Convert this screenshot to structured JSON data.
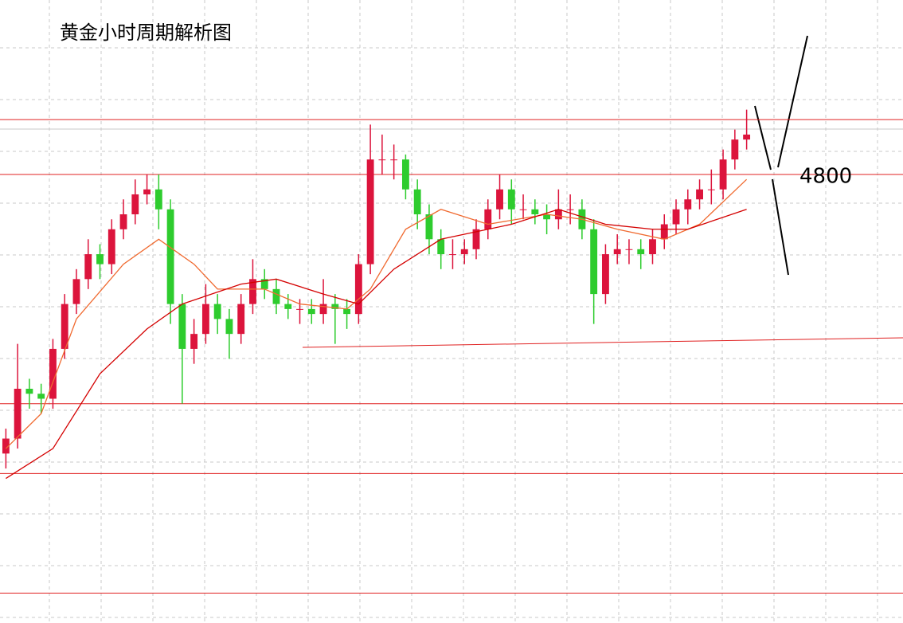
{
  "chart_data": {
    "type": "candlestick",
    "title": "黄金小时周期解析图",
    "ylim": [
      4710,
      4835
    ],
    "up_color": "#dc143c",
    "down_color": "#2ecc2e",
    "level_color": "#e02020",
    "candles": [
      {
        "o": 4744,
        "h": 4749,
        "l": 4741,
        "c": 4747
      },
      {
        "o": 4747,
        "h": 4766,
        "l": 4745,
        "c": 4757
      },
      {
        "o": 4757,
        "h": 4759,
        "l": 4753,
        "c": 4756
      },
      {
        "o": 4756,
        "h": 4758,
        "l": 4752,
        "c": 4755
      },
      {
        "o": 4755,
        "h": 4767,
        "l": 4753,
        "c": 4765
      },
      {
        "o": 4765,
        "h": 4776,
        "l": 4763,
        "c": 4774
      },
      {
        "o": 4774,
        "h": 4781,
        "l": 4772,
        "c": 4779
      },
      {
        "o": 4779,
        "h": 4787,
        "l": 4777,
        "c": 4784
      },
      {
        "o": 4784,
        "h": 4786,
        "l": 4779,
        "c": 4782
      },
      {
        "o": 4782,
        "h": 4791,
        "l": 4780,
        "c": 4789
      },
      {
        "o": 4789,
        "h": 4795,
        "l": 4787,
        "c": 4792
      },
      {
        "o": 4792,
        "h": 4799,
        "l": 4790,
        "c": 4796
      },
      {
        "o": 4796,
        "h": 4800,
        "l": 4794,
        "c": 4797
      },
      {
        "o": 4797,
        "h": 4800,
        "l": 4789,
        "c": 4793
      },
      {
        "o": 4793,
        "h": 4795,
        "l": 4770,
        "c": 4774
      },
      {
        "o": 4774,
        "h": 4776,
        "l": 4754,
        "c": 4765
      },
      {
        "o": 4765,
        "h": 4771,
        "l": 4762,
        "c": 4768
      },
      {
        "o": 4768,
        "h": 4778,
        "l": 4766,
        "c": 4774
      },
      {
        "o": 4774,
        "h": 4776,
        "l": 4768,
        "c": 4771
      },
      {
        "o": 4771,
        "h": 4773,
        "l": 4763,
        "c": 4768
      },
      {
        "o": 4768,
        "h": 4776,
        "l": 4766,
        "c": 4774
      },
      {
        "o": 4774,
        "h": 4783,
        "l": 4772,
        "c": 4779
      },
      {
        "o": 4779,
        "h": 4781,
        "l": 4775,
        "c": 4777
      },
      {
        "o": 4777,
        "h": 4779,
        "l": 4772,
        "c": 4774
      },
      {
        "o": 4774,
        "h": 4776,
        "l": 4771,
        "c": 4773
      },
      {
        "o": 4773,
        "h": 4775,
        "l": 4770,
        "c": 4773
      },
      {
        "o": 4773,
        "h": 4775,
        "l": 4770,
        "c": 4772
      },
      {
        "o": 4772,
        "h": 4779,
        "l": 4770,
        "c": 4774
      },
      {
        "o": 4774,
        "h": 4776,
        "l": 4766,
        "c": 4773
      },
      {
        "o": 4773,
        "h": 4775,
        "l": 4769,
        "c": 4772
      },
      {
        "o": 4772,
        "h": 4784,
        "l": 4770,
        "c": 4782
      },
      {
        "o": 4782,
        "h": 4810,
        "l": 4780,
        "c": 4803
      },
      {
        "o": 4803,
        "h": 4808,
        "l": 4800,
        "c": 4803
      },
      {
        "o": 4803,
        "h": 4806,
        "l": 4799,
        "c": 4803
      },
      {
        "o": 4803,
        "h": 4804,
        "l": 4795,
        "c": 4797
      },
      {
        "o": 4797,
        "h": 4799,
        "l": 4789,
        "c": 4792
      },
      {
        "o": 4792,
        "h": 4794,
        "l": 4784,
        "c": 4787
      },
      {
        "o": 4787,
        "h": 4789,
        "l": 4781,
        "c": 4784
      },
      {
        "o": 4784,
        "h": 4787,
        "l": 4781,
        "c": 4784
      },
      {
        "o": 4784,
        "h": 4787,
        "l": 4782,
        "c": 4785
      },
      {
        "o": 4785,
        "h": 4791,
        "l": 4783,
        "c": 4789
      },
      {
        "o": 4789,
        "h": 4795,
        "l": 4787,
        "c": 4793
      },
      {
        "o": 4793,
        "h": 4800,
        "l": 4791,
        "c": 4797
      },
      {
        "o": 4797,
        "h": 4799,
        "l": 4790,
        "c": 4793
      },
      {
        "o": 4793,
        "h": 4796,
        "l": 4791,
        "c": 4793
      },
      {
        "o": 4793,
        "h": 4795,
        "l": 4790,
        "c": 4792
      },
      {
        "o": 4792,
        "h": 4794,
        "l": 4788,
        "c": 4791
      },
      {
        "o": 4791,
        "h": 4797,
        "l": 4789,
        "c": 4793
      },
      {
        "o": 4793,
        "h": 4796,
        "l": 4790,
        "c": 4793
      },
      {
        "o": 4793,
        "h": 4795,
        "l": 4787,
        "c": 4789
      },
      {
        "o": 4789,
        "h": 4791,
        "l": 4770,
        "c": 4776
      },
      {
        "o": 4776,
        "h": 4786,
        "l": 4774,
        "c": 4784
      },
      {
        "o": 4784,
        "h": 4788,
        "l": 4782,
        "c": 4785
      },
      {
        "o": 4785,
        "h": 4787,
        "l": 4782,
        "c": 4785
      },
      {
        "o": 4785,
        "h": 4787,
        "l": 4781,
        "c": 4784
      },
      {
        "o": 4784,
        "h": 4789,
        "l": 4782,
        "c": 4787
      },
      {
        "o": 4787,
        "h": 4792,
        "l": 4785,
        "c": 4790
      },
      {
        "o": 4790,
        "h": 4795,
        "l": 4788,
        "c": 4793
      },
      {
        "o": 4793,
        "h": 4797,
        "l": 4790,
        "c": 4795
      },
      {
        "o": 4795,
        "h": 4799,
        "l": 4793,
        "c": 4797
      },
      {
        "o": 4797,
        "h": 4801,
        "l": 4794,
        "c": 4797
      },
      {
        "o": 4797,
        "h": 4805,
        "l": 4795,
        "c": 4803
      },
      {
        "o": 4803,
        "h": 4809,
        "l": 4801,
        "c": 4807
      },
      {
        "o": 4807,
        "h": 4813,
        "l": 4805,
        "c": 4808
      }
    ],
    "series": [
      {
        "color": "#f06a30",
        "x": [
          0,
          3,
          6,
          10,
          13,
          16,
          18,
          22,
          25,
          29,
          31,
          34,
          37,
          41,
          46,
          49,
          52,
          56,
          59,
          63
        ],
        "values": [
          4745,
          4752,
          4771,
          4782,
          4787,
          4782,
          4777,
          4777,
          4774,
          4773,
          4777,
          4789,
          4793,
          4790,
          4792,
          4791,
          4789,
          4787,
          4790,
          4799
        ]
      },
      {
        "color": "#d40000",
        "x": [
          0,
          4,
          8,
          12,
          15,
          20,
          23,
          27,
          30,
          33,
          37,
          43,
          47,
          51,
          55,
          58,
          63
        ],
        "values": [
          4739,
          4745,
          4760,
          4769,
          4774,
          4778,
          4779,
          4776,
          4774,
          4781,
          4787,
          4790,
          4793,
          4790,
          4789,
          4789,
          4793
        ]
      }
    ],
    "levels": [
      4811,
      4800,
      4754,
      4740,
      4716
    ]
  }
}
